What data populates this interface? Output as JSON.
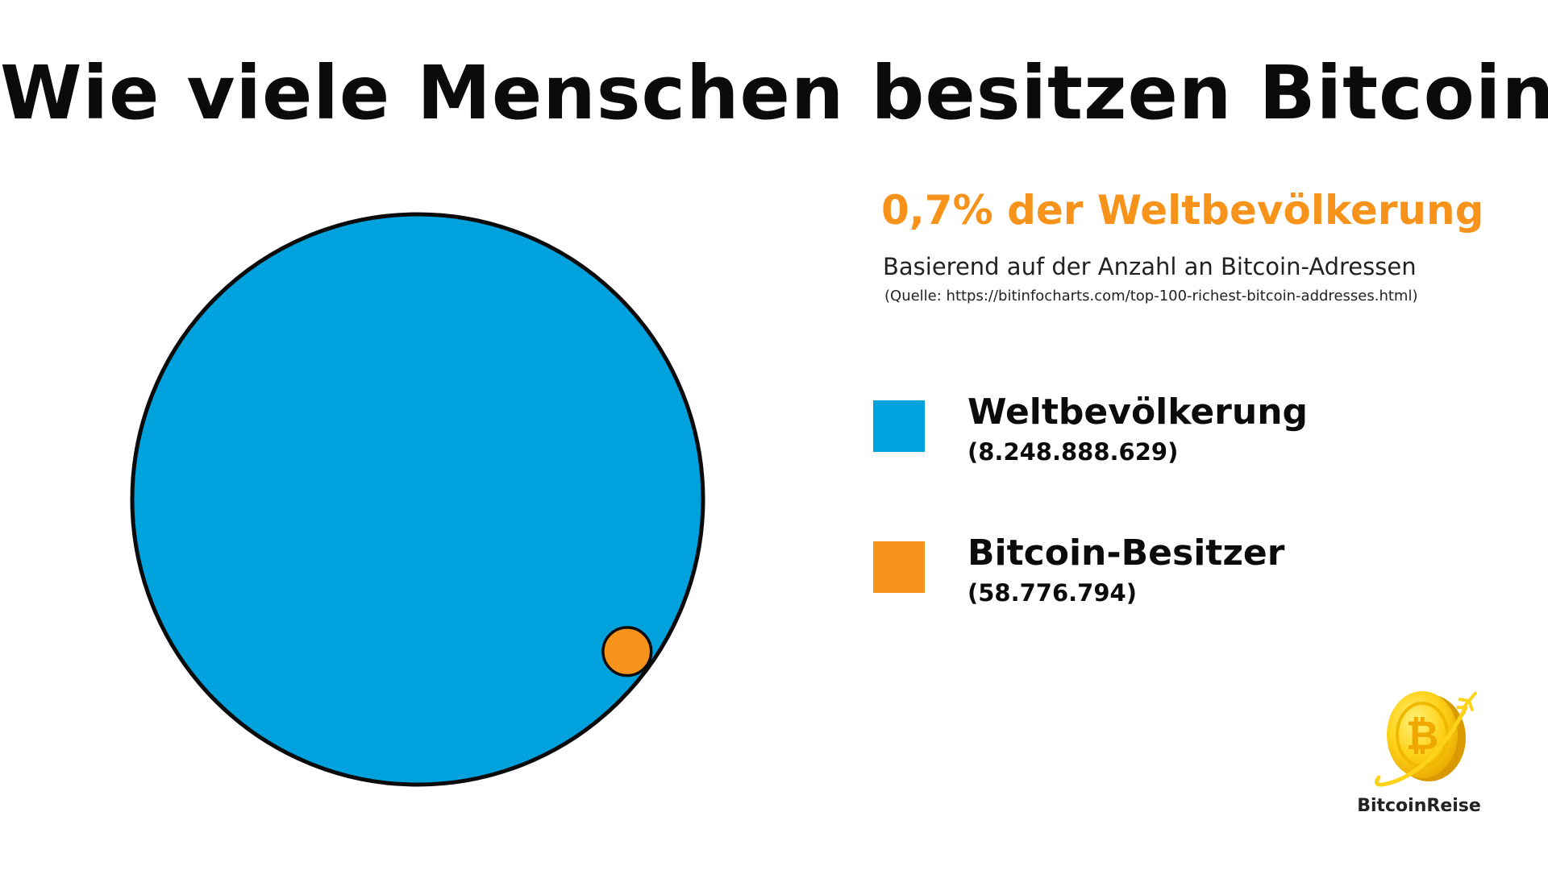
{
  "title": "Wie viele Menschen besitzen Bitcoin?",
  "headline": "0,7% der Weltbevölkerung",
  "subtitle": "Basierend auf der Anzahl an Bitcoin-Adressen",
  "source": "(Quelle: https://bitinfocharts.com/top-100-richest-bitcoin-addresses.html)",
  "logo": {
    "text": "BitcoinReise",
    "icon": "bitcoin-coin-airplane-icon",
    "symbol": "₿"
  },
  "colors": {
    "world": "#00a2de",
    "bitcoin": "#f7931a",
    "outline": "#0b0b0b",
    "title": "#0b0b0b",
    "accent": "#f7931a"
  },
  "chart_data": {
    "type": "area",
    "series": [
      {
        "name": "Weltbevölkerung",
        "label": "(8.248.888.629)",
        "value": 8248888629
      },
      {
        "name": "Bitcoin-Besitzer",
        "label": "(58.776.794)",
        "value": 58776794
      }
    ],
    "title": "Wie viele Menschen besitzen Bitcoin?",
    "legend_position": "right"
  }
}
